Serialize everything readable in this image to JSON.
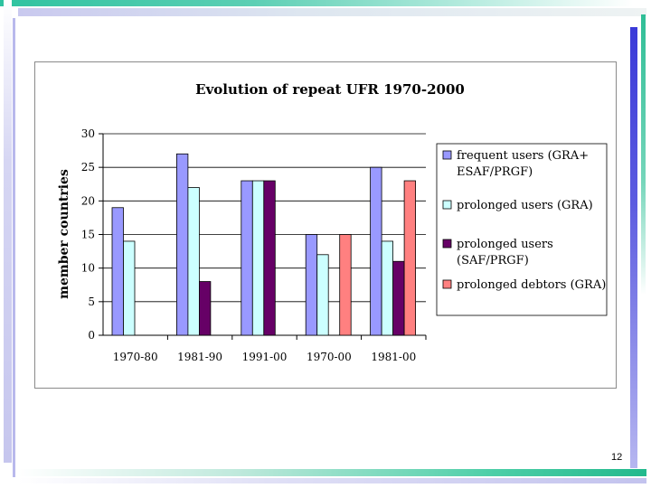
{
  "slide": {
    "page_number": "12"
  },
  "chart_data": {
    "type": "bar",
    "title": "Evolution of repeat UFR 1970-2000",
    "xlabel": "",
    "ylabel": "member countries",
    "ylim": [
      0,
      30
    ],
    "yticks": [
      0,
      5,
      10,
      15,
      20,
      25,
      30
    ],
    "grid": true,
    "legend_position": "right",
    "categories": [
      "1970-80",
      "1981-90",
      "1991-00",
      "1970-00",
      "1981-00"
    ],
    "series": [
      {
        "name": "frequent users (GRA+ ESAF/PRGF)",
        "legend_lines": [
          "frequent users (GRA+",
          "ESAF/PRGF)"
        ],
        "color": "#9999ff",
        "values": [
          19,
          27,
          23,
          15,
          25
        ]
      },
      {
        "name": "prolonged users (GRA)",
        "legend_lines": [
          "prolonged users (GRA)"
        ],
        "color": "#ccffff",
        "values": [
          14,
          22,
          23,
          12,
          14
        ]
      },
      {
        "name": "prolonged users (SAF/PRGF)",
        "legend_lines": [
          "prolonged users",
          "(SAF/PRGF)"
        ],
        "color": "#660066",
        "values": [
          null,
          8,
          23,
          null,
          11
        ]
      },
      {
        "name": "prolonged debtors (GRA)",
        "legend_lines": [
          "prolonged debtors (GRA)"
        ],
        "color": "#ff8080",
        "values": [
          null,
          null,
          null,
          15,
          23
        ]
      }
    ]
  }
}
